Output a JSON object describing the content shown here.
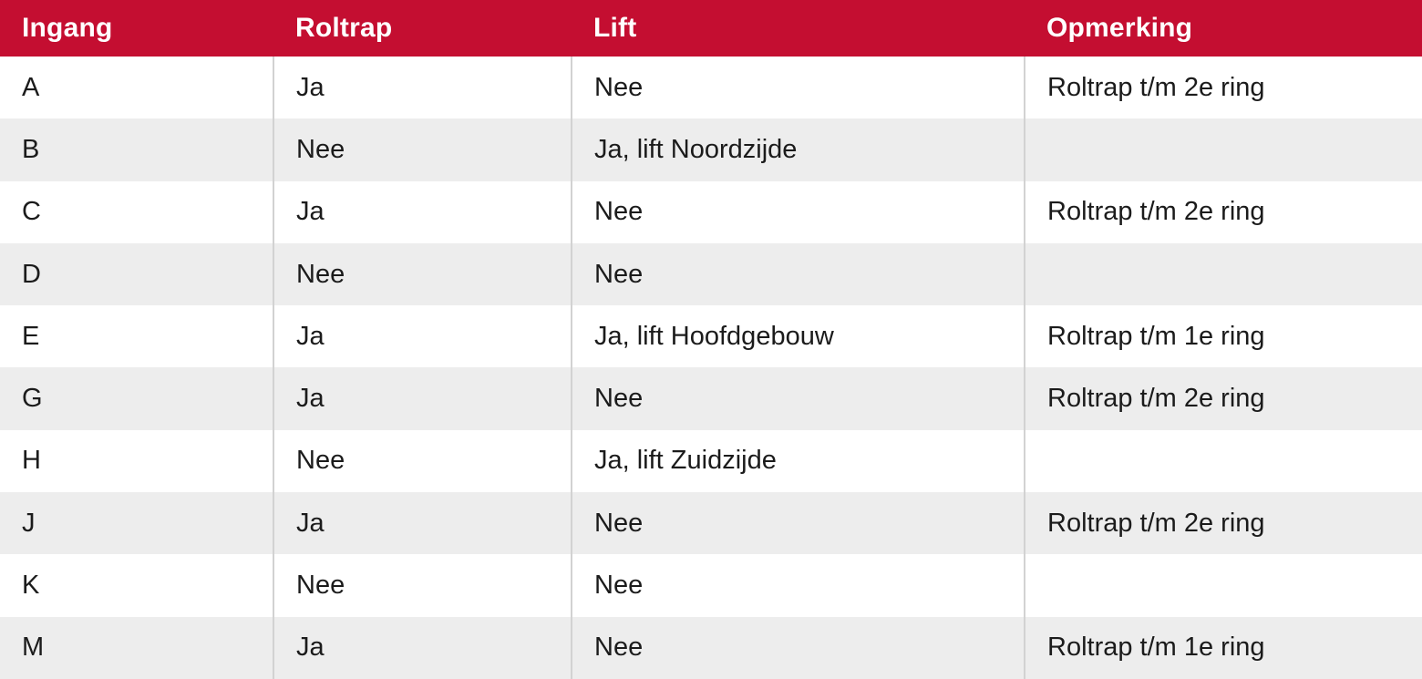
{
  "colors": {
    "header_bg": "#C40E31",
    "header_text": "#FFFFFF",
    "row_bg": "#FFFFFF",
    "row_alt_bg": "#EDEDED",
    "divider": "#D2D2D2",
    "body_text": "#1B1B1B"
  },
  "table": {
    "columns": [
      {
        "key": "ingang",
        "label": "Ingang"
      },
      {
        "key": "roltrap",
        "label": "Roltrap"
      },
      {
        "key": "lift",
        "label": "Lift"
      },
      {
        "key": "opmerking",
        "label": "Opmerking"
      }
    ],
    "rows": [
      {
        "ingang": "A",
        "roltrap": "Ja",
        "lift": "Nee",
        "opmerking": "Roltrap t/m 2e ring"
      },
      {
        "ingang": "B",
        "roltrap": "Nee",
        "lift": "Ja, lift Noordzijde",
        "opmerking": ""
      },
      {
        "ingang": "C",
        "roltrap": "Ja",
        "lift": "Nee",
        "opmerking": "Roltrap t/m 2e ring"
      },
      {
        "ingang": "D",
        "roltrap": "Nee",
        "lift": "Nee",
        "opmerking": ""
      },
      {
        "ingang": "E",
        "roltrap": "Ja",
        "lift": "Ja, lift Hoofdgebouw",
        "opmerking": "Roltrap t/m 1e ring"
      },
      {
        "ingang": "G",
        "roltrap": "Ja",
        "lift": "Nee",
        "opmerking": "Roltrap t/m 2e ring"
      },
      {
        "ingang": "H",
        "roltrap": "Nee",
        "lift": "Ja, lift Zuidzijde",
        "opmerking": ""
      },
      {
        "ingang": "J",
        "roltrap": "Ja",
        "lift": "Nee",
        "opmerking": "Roltrap t/m 2e ring"
      },
      {
        "ingang": "K",
        "roltrap": "Nee",
        "lift": "Nee",
        "opmerking": ""
      },
      {
        "ingang": "M",
        "roltrap": "Ja",
        "lift": "Nee",
        "opmerking": "Roltrap t/m 1e ring"
      }
    ]
  }
}
